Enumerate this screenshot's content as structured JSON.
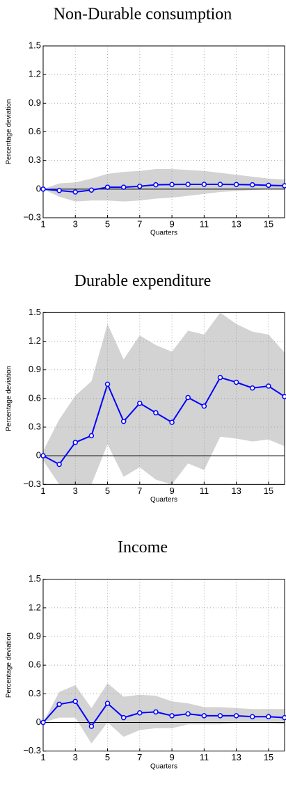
{
  "chart_data": [
    {
      "type": "line",
      "title": "Non-Durable consumption",
      "xlabel": "Quarters",
      "ylabel": "Percentage deviation",
      "x": [
        1,
        2,
        3,
        4,
        5,
        6,
        7,
        8,
        9,
        10,
        11,
        12,
        13,
        14,
        15,
        16
      ],
      "series": [
        {
          "color": "#0000ff",
          "values": [
            0,
            -0.015,
            -0.03,
            -0.01,
            0.02,
            0.02,
            0.03,
            0.045,
            0.048,
            0.05,
            0.05,
            0.05,
            0.048,
            0.045,
            0.04,
            0.035
          ]
        }
      ],
      "band": {
        "color": "#d3d3d3",
        "upper": [
          0,
          0.06,
          0.07,
          0.11,
          0.16,
          0.18,
          0.19,
          0.21,
          0.21,
          0.2,
          0.19,
          0.17,
          0.15,
          0.13,
          0.11,
          0.1
        ],
        "lower": [
          0,
          -0.08,
          -0.13,
          -0.12,
          -0.12,
          -0.13,
          -0.12,
          -0.1,
          -0.09,
          -0.07,
          -0.05,
          -0.03,
          -0.02,
          -0.01,
          0,
          0
        ]
      },
      "xlim": [
        1,
        16
      ],
      "xticks": [
        1,
        3,
        5,
        7,
        9,
        11,
        13,
        15
      ],
      "ylim": [
        -0.3,
        1.5
      ],
      "yticks": [
        {
          "value": -0.3,
          "label": "−0.3"
        },
        0,
        0.3,
        0.6,
        0.9,
        1.2,
        1.5
      ],
      "grid": true
    },
    {
      "type": "line",
      "title": "Durable expenditure",
      "xlabel": "Quarters",
      "ylabel": "Percentage deviation",
      "x": [
        1,
        2,
        3,
        4,
        5,
        6,
        7,
        8,
        9,
        10,
        11,
        12,
        13,
        14,
        15,
        16
      ],
      "series": [
        {
          "color": "#0000ff",
          "values": [
            0,
            -0.09,
            0.14,
            0.21,
            0.75,
            0.36,
            0.55,
            0.45,
            0.35,
            0.61,
            0.52,
            0.82,
            0.77,
            0.71,
            0.73,
            0.62
          ]
        }
      ],
      "band": {
        "color": "#d3d3d3",
        "upper": [
          0.05,
          0.38,
          0.63,
          0.78,
          1.38,
          1.01,
          1.26,
          1.16,
          1.09,
          1.31,
          1.27,
          1.5,
          1.38,
          1.3,
          1.27,
          1.08
        ],
        "lower": [
          -0.05,
          -0.3,
          -0.3,
          -0.3,
          0.12,
          -0.22,
          -0.12,
          -0.25,
          -0.3,
          -0.08,
          -0.15,
          0.2,
          0.18,
          0.15,
          0.17,
          0.1
        ]
      },
      "xlim": [
        1,
        16
      ],
      "xticks": [
        1,
        3,
        5,
        7,
        9,
        11,
        13,
        15
      ],
      "ylim": [
        -0.3,
        1.5
      ],
      "yticks": [
        {
          "value": -0.3,
          "label": "−0.3"
        },
        0,
        0.3,
        0.6,
        0.9,
        1.2,
        1.5
      ],
      "grid": true
    },
    {
      "type": "line",
      "title": "Income",
      "xlabel": "Quarters",
      "ylabel": "Percentage deviation",
      "x": [
        1,
        2,
        3,
        4,
        5,
        6,
        7,
        8,
        9,
        10,
        11,
        12,
        13,
        14,
        15,
        16
      ],
      "series": [
        {
          "color": "#0000ff",
          "values": [
            0,
            0.19,
            0.22,
            -0.04,
            0.2,
            0.05,
            0.1,
            0.11,
            0.07,
            0.09,
            0.07,
            0.07,
            0.07,
            0.06,
            0.06,
            0.05
          ]
        }
      ],
      "band": {
        "color": "#d3d3d3",
        "upper": [
          0,
          0.32,
          0.39,
          0.15,
          0.41,
          0.27,
          0.29,
          0.28,
          0.22,
          0.2,
          0.16,
          0.16,
          0.15,
          0.14,
          0.14,
          0.14
        ],
        "lower": [
          0,
          0.05,
          0.05,
          -0.22,
          0,
          -0.15,
          -0.08,
          -0.06,
          -0.06,
          -0.02,
          -0.02,
          -0.02,
          -0.01,
          -0.01,
          -0.01,
          -0.02
        ]
      },
      "xlim": [
        1,
        16
      ],
      "xticks": [
        1,
        3,
        5,
        7,
        9,
        11,
        13,
        15
      ],
      "ylim": [
        -0.3,
        1.5
      ],
      "yticks": [
        {
          "value": -0.3,
          "label": "−0.3"
        },
        0,
        0.3,
        0.6,
        0.9,
        1.2,
        1.5
      ],
      "grid": true
    }
  ]
}
